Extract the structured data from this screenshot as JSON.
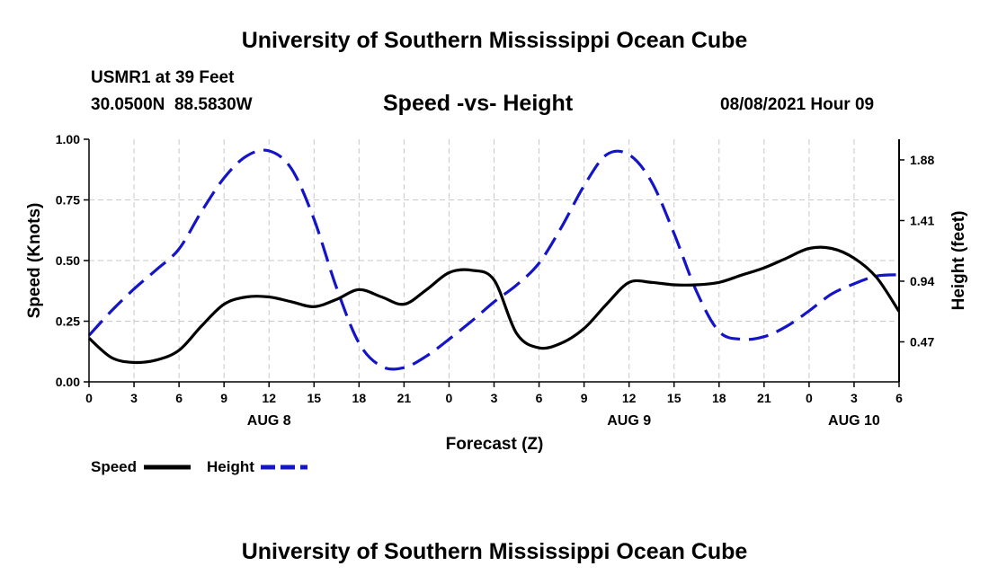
{
  "header": {
    "title_top": "University of Southern Mississippi Ocean Cube",
    "station": "USMR1 at 39 Feet",
    "coords": "30.0500N  88.5830W",
    "subtitle": "Speed -vs- Height",
    "datetime": "08/08/2021 Hour 09",
    "title_bottom": "University of Southern Mississippi Ocean Cube"
  },
  "legend": {
    "speed_label": "Speed",
    "height_label": "Height"
  },
  "chart_data": {
    "type": "line",
    "title": "Speed -vs- Height",
    "xlabel": "Forecast (Z)",
    "ylabel": "Speed (Knots)",
    "y2label": "Height (feet)",
    "xlim": [
      0,
      54
    ],
    "ylim": [
      0,
      1
    ],
    "y2lim": [
      0.16,
      2.04
    ],
    "x_ticks": [
      0,
      3,
      6,
      9,
      12,
      15,
      18,
      21,
      24,
      27,
      30,
      33,
      36,
      39,
      42,
      45,
      48,
      51,
      54
    ],
    "x_tick_labels": [
      "0",
      "3",
      "6",
      "9",
      "12",
      "15",
      "18",
      "21",
      "0",
      "3",
      "6",
      "9",
      "12",
      "15",
      "18",
      "21",
      "0",
      "3",
      "6"
    ],
    "date_labels": [
      {
        "x": 12,
        "label": "AUG 8"
      },
      {
        "x": 36,
        "label": "AUG 9"
      },
      {
        "x": 51,
        "label": "AUG 10"
      }
    ],
    "y_ticks": [
      0,
      0.25,
      0.5,
      0.75,
      1.0
    ],
    "y_tick_labels": [
      "0.00",
      "0.25",
      "0.50",
      "0.75",
      "1.00"
    ],
    "y2_ticks": [
      0.47,
      0.94,
      1.41,
      1.88
    ],
    "y2_tick_labels": [
      "0.47",
      "0.94",
      "1.41",
      "1.88"
    ],
    "grid": true,
    "legend_position": "bottom-left",
    "series": [
      {
        "name": "Speed",
        "axis": "left",
        "color": "#000000",
        "dash": "solid",
        "x": [
          0,
          1.5,
          3,
          4.5,
          6,
          7.5,
          9,
          10.5,
          12,
          13.5,
          15,
          16.5,
          18,
          19.5,
          21,
          22.5,
          24,
          25.5,
          27,
          28.5,
          30,
          31.5,
          33,
          34.5,
          36,
          37.5,
          39,
          40.5,
          42,
          43.5,
          45,
          46.5,
          48,
          49.5,
          51,
          52.5,
          54
        ],
        "values": [
          0.18,
          0.1,
          0.08,
          0.09,
          0.13,
          0.23,
          0.32,
          0.35,
          0.35,
          0.33,
          0.31,
          0.34,
          0.38,
          0.35,
          0.32,
          0.38,
          0.45,
          0.46,
          0.42,
          0.2,
          0.14,
          0.16,
          0.22,
          0.32,
          0.41,
          0.41,
          0.4,
          0.4,
          0.41,
          0.44,
          0.47,
          0.51,
          0.55,
          0.55,
          0.51,
          0.43,
          0.29
        ]
      },
      {
        "name": "Height",
        "axis": "right",
        "color": "#1414c8",
        "dash": "dashed",
        "x": [
          0,
          1.5,
          3,
          4.5,
          6,
          7.5,
          9,
          10.5,
          12,
          13.5,
          15,
          16.5,
          18,
          19.5,
          21,
          22.5,
          24,
          25.5,
          27,
          28.5,
          30,
          31.5,
          33,
          34.5,
          36,
          37.5,
          39,
          40.5,
          42,
          43.5,
          45,
          46.5,
          48,
          49.5,
          51,
          52.5,
          54
        ],
        "values": [
          0.52,
          0.71,
          0.88,
          1.03,
          1.19,
          1.48,
          1.74,
          1.91,
          1.95,
          1.81,
          1.42,
          0.89,
          0.46,
          0.28,
          0.27,
          0.36,
          0.49,
          0.63,
          0.78,
          0.91,
          1.08,
          1.36,
          1.68,
          1.92,
          1.92,
          1.71,
          1.31,
          0.86,
          0.55,
          0.49,
          0.51,
          0.59,
          0.71,
          0.84,
          0.92,
          0.98,
          0.99
        ]
      }
    ]
  }
}
